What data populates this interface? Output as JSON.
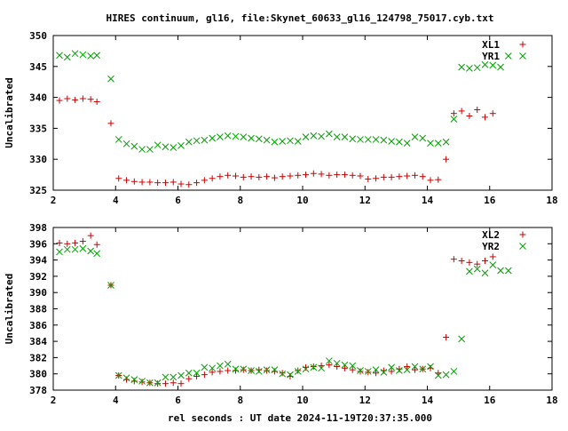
{
  "page": {
    "title": "HIRES continuum, gl16, file:Skynet_60633_gl16_124798_75017.cyb.txt",
    "xlabel": "rel seconds : UT date 2024-11-19T20:37:35.000"
  },
  "colors": {
    "red": "#cc0000",
    "green": "#00a000",
    "axis": "#000000"
  },
  "chart_data": [
    {
      "type": "scatter",
      "title": "HIRES continuum, gl16, file:Skynet_60633_gl16_124798_75017.cyb.txt",
      "xlabel": "",
      "ylabel": "Uncalibrated",
      "xlim": [
        2,
        18
      ],
      "ylim": [
        325,
        350
      ],
      "xticks": [
        2,
        4,
        6,
        8,
        10,
        12,
        14,
        16,
        18
      ],
      "yticks": [
        325,
        330,
        335,
        340,
        345,
        350
      ],
      "legend_position": "top-right",
      "grid": false,
      "x": [
        2.2,
        2.45,
        2.7,
        2.95,
        3.2,
        3.4,
        3.7,
        3.85,
        4.1,
        4.35,
        4.6,
        4.85,
        5.1,
        5.35,
        5.6,
        5.85,
        6.1,
        6.35,
        6.6,
        6.85,
        7.1,
        7.35,
        7.6,
        7.85,
        8.1,
        8.35,
        8.6,
        8.85,
        9.1,
        9.35,
        9.6,
        9.85,
        10.1,
        10.35,
        10.6,
        10.85,
        11.1,
        11.35,
        11.6,
        11.85,
        12.1,
        12.35,
        12.6,
        12.85,
        13.1,
        13.35,
        13.6,
        13.85,
        14.1,
        14.35,
        14.6,
        14.85,
        15.1,
        15.35,
        15.6,
        15.85,
        16.1,
        16.35,
        16.6,
        16.85,
        17.1
      ],
      "series": [
        {
          "name": "XL1",
          "marker": "plus",
          "color": "#cc0000",
          "values": [
            339.5,
            339.8,
            339.6,
            339.8,
            339.7,
            339.3,
            null,
            335.8,
            326.9,
            326.6,
            326.4,
            326.3,
            326.3,
            326.2,
            326.2,
            326.3,
            326.0,
            325.9,
            326.2,
            326.6,
            326.9,
            327.2,
            327.4,
            327.3,
            327.1,
            327.2,
            327.1,
            327.2,
            327.0,
            327.2,
            327.3,
            327.4,
            327.5,
            327.7,
            327.6,
            327.4,
            327.5,
            327.5,
            327.4,
            327.3,
            326.8,
            326.9,
            327.1,
            327.1,
            327.2,
            327.3,
            327.4,
            327.2,
            326.6,
            326.7,
            330.0,
            337.4,
            337.8,
            337.0,
            338.0,
            336.8,
            337.4,
            null,
            null,
            null,
            null
          ]
        },
        {
          "name": "YR1",
          "marker": "cross",
          "color": "#00a000",
          "values": [
            346.8,
            346.5,
            347.1,
            346.9,
            346.7,
            346.8,
            null,
            343.0,
            333.2,
            332.5,
            332.1,
            331.6,
            331.6,
            332.3,
            332.0,
            331.9,
            332.2,
            332.8,
            333.0,
            333.1,
            333.4,
            333.6,
            333.8,
            333.7,
            333.6,
            333.4,
            333.3,
            333.1,
            332.8,
            332.9,
            333.0,
            332.9,
            333.6,
            333.8,
            333.7,
            334.1,
            333.6,
            333.6,
            333.3,
            333.2,
            333.2,
            333.2,
            333.1,
            332.9,
            332.8,
            332.6,
            333.6,
            333.4,
            332.6,
            332.6,
            332.8,
            336.5,
            344.9,
            344.7,
            344.8,
            345.3,
            345.2,
            344.9,
            346.7,
            null,
            null
          ]
        }
      ]
    },
    {
      "type": "scatter",
      "title": "",
      "xlabel": "rel seconds : UT date 2024-11-19T20:37:35.000",
      "ylabel": "Uncalibrated",
      "xlim": [
        2,
        18
      ],
      "ylim": [
        378,
        398
      ],
      "xticks": [
        2,
        4,
        6,
        8,
        10,
        12,
        14,
        16,
        18
      ],
      "yticks": [
        378,
        380,
        382,
        384,
        386,
        388,
        390,
        392,
        394,
        396,
        398
      ],
      "legend_position": "top-right",
      "grid": false,
      "x": [
        2.2,
        2.45,
        2.7,
        2.95,
        3.2,
        3.4,
        3.7,
        3.85,
        4.1,
        4.35,
        4.6,
        4.85,
        5.1,
        5.35,
        5.6,
        5.85,
        6.1,
        6.35,
        6.6,
        6.85,
        7.1,
        7.35,
        7.6,
        7.85,
        8.1,
        8.35,
        8.6,
        8.85,
        9.1,
        9.35,
        9.6,
        9.85,
        10.1,
        10.35,
        10.6,
        10.85,
        11.1,
        11.35,
        11.6,
        11.85,
        12.1,
        12.35,
        12.6,
        12.85,
        13.1,
        13.35,
        13.6,
        13.85,
        14.1,
        14.35,
        14.6,
        14.85,
        15.1,
        15.35,
        15.6,
        15.85,
        16.1,
        16.35,
        16.6,
        16.85,
        17.1
      ],
      "series": [
        {
          "name": "XL2",
          "marker": "plus",
          "color": "#cc0000",
          "values": [
            396.1,
            396.0,
            396.1,
            396.3,
            397.0,
            395.9,
            null,
            390.9,
            379.8,
            379.3,
            379.1,
            379.0,
            378.9,
            378.8,
            378.8,
            378.9,
            378.8,
            379.4,
            379.7,
            379.9,
            380.2,
            380.3,
            380.4,
            380.4,
            380.5,
            380.4,
            380.5,
            380.4,
            380.3,
            380.1,
            379.7,
            380.4,
            380.8,
            380.9,
            381.0,
            381.1,
            380.9,
            380.7,
            380.5,
            380.3,
            380.2,
            380.1,
            380.4,
            380.3,
            380.6,
            380.9,
            380.5,
            380.6,
            380.7,
            380.1,
            384.5,
            394.1,
            393.9,
            393.7,
            393.5,
            393.9,
            394.4,
            null,
            null,
            null,
            null
          ]
        },
        {
          "name": "YR2",
          "marker": "cross",
          "color": "#00a000",
          "values": [
            395.0,
            395.3,
            395.3,
            395.4,
            395.1,
            394.8,
            null,
            390.9,
            379.8,
            379.5,
            379.3,
            379.1,
            378.9,
            378.9,
            379.6,
            379.6,
            379.8,
            380.1,
            380.1,
            380.8,
            380.7,
            381.0,
            381.2,
            380.6,
            380.6,
            380.4,
            380.3,
            380.5,
            380.5,
            380.0,
            379.9,
            380.3,
            380.6,
            380.8,
            380.7,
            381.6,
            381.3,
            381.1,
            381.0,
            380.4,
            380.3,
            380.5,
            380.2,
            380.8,
            380.4,
            380.5,
            380.9,
            380.6,
            380.9,
            379.8,
            379.9,
            380.3,
            384.3,
            392.6,
            392.9,
            392.4,
            393.4,
            392.7,
            392.7,
            null,
            null
          ]
        }
      ]
    }
  ]
}
